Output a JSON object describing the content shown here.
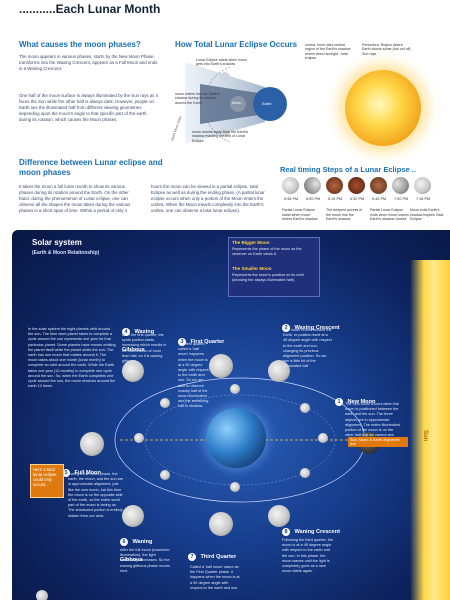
{
  "header": {
    "title": "...........Each Lunar Month"
  },
  "causes": {
    "heading": "What causes the moon phases?",
    "p1": "The moon appears in various phases, starts by the New Moon Phase, transforms into the Waxing Crescent, appears as a Full Moon and ends in a Waning Crescent.",
    "p2": "One half of the moon surface is always illuminated by the Sun rays as it faces the Sun while the other half is always dark. However, people on Earth see the illuminated half from different viewing geometries depending upon the moon's angle to that specific part of the earth during its rotation, which causes the Moon phases."
  },
  "eclipse": {
    "heading": "How Total Lunar Eclipse Occurs",
    "label_start": "Lunar Eclipse starts when moon gets into Earth's shadow",
    "label_enter": "moon enters into the Earth's shadow during its rotation around the Earth",
    "label_exit": "moon moves away from the Earth's shadow marking the end of Lunar Eclipse",
    "label_moon": "Moon",
    "label_earth": "Earth",
    "label_orbit": "Earth Moon Orbit",
    "label_umbra": "umbra. Inner dark central region of the Earth's shadow where direct sunlight - total eclipse",
    "label_penumbra": "Penumbra. Region where Earth blocks some (but not all) Sun rays."
  },
  "difference": {
    "heading": "Difference between Lunar eclipse and moon phases",
    "col1": "It takes the moon a full lunar month to show its various phases during its rotation around the Earth. On the other hand, during the phenomenon of Lunar eclipse, one can observe all the shapes the moon takes during the various phases in a short span of time. Within a period of only 4",
    "col2": "hours the moon can be viewed in a partial eclipse, total Eclipse as well as during the ending phase. (A partial lunar eclipse occurs when only a portion of the Moon enters the umbra. When the Moon travels completely into the Earth's umbra, one can observe a total lunar eclipse)."
  },
  "timing": {
    "heading": "Real timing Steps of a Lunar Eclipse ..",
    "times": [
      "5:48 PM",
      "6:00 PM",
      "6:15 PM",
      "6:30 PM",
      "6:45 PM",
      "7:00 PM",
      "7:18 PM"
    ],
    "caption1": "Partial Lunar Eclipse starts when moon enters Earth's shadow",
    "caption2": "The deepest access of the moon into the Earth's shadow",
    "caption3": "Partial Lunar Eclipse ends when moon leaves Earth's shadow Umbra",
    "caption3b": "Total Lunar Eclipse",
    "caption4": "Moon exits Earth's shadow Implies Total Eclipse"
  },
  "solar": {
    "title": "Solar system",
    "subtitle": "(Earth & Moon Relationship)",
    "intro": "In the solar system the eight planets orbit around the sun. The time each planet takes to complete a cycle around the sun represents one year for that particular planet. Some planets have moons orbiting the planet itself while the planet orbits the sun. The earth has one moon that rotates around it. The moon takes about one month (lunar month) to complete an orbit around the earth. While the Earth takes one year (12 months) to complete one cycle around the sun. So, when the Earth completes one cycle around the sun, the moon revolves around the earth 12 times.",
    "bigger_title": "The Bigger Moon",
    "bigger_text": "Represents the phase of the moon as the observer on Earth views it.",
    "smaller_title": "The Smaller Moon",
    "smaller_text": "Represents the moon's position on its orbit (showing the always illuminated half).",
    "note": "Here a total lunar eclipse could only occurs.",
    "sun_label": "Sun",
    "sun_earth_label": "Sun, Moon & Earth alignment line"
  },
  "phases": [
    {
      "num": "1",
      "name": "New Moon",
      "text": "The new moon occurs when the moon is positioned between the earth and the sun. The three objects are in approximate alignment. The entire illuminated portion of the moon is on the other half that we cannot see."
    },
    {
      "num": "2",
      "name": "Waxing Crescent",
      "text": "The moon moves around the Earth, to position itself at a 45 degree angle with respect to the earth and sun, changing its previous alignment position. So we see a little bit of the illuminated half."
    },
    {
      "num": "3",
      "name": "First Quarter",
      "text": "The first quarter, called a 'half moon' happens when the moon is at a 90 degree angle with respect to the earth and sun. So we are able to observe exactly half of the moon illuminated and the remaining half in shadow."
    },
    {
      "num": "4",
      "name": "Waxing Gibbous",
      "text": "After the first quarter, the synth portion starts increasing which results in the illumination of more than half, so it is waxing gibbous."
    },
    {
      "num": "5",
      "name": "Full Moon",
      "text": "During a full moon phase, the earth, the moon, and the sun are in approximate alignment, just like the new moon, but this time the moon is on the opposite side of the earth, so the entire sunlit part of the moon is facing us. The shadowed portion is entirely hidden from our view."
    },
    {
      "num": "6",
      "name": "Waning Gibbous",
      "text": "After the full moon (maximum illumination), the light continually decreases. So the waning gibbous phase occurs next."
    },
    {
      "num": "7",
      "name": "Third Quarter",
      "text": "Called a 'half moon' same as the First Quarter phase. It happens when the moon is at a 90 degree angle with respect to the earth and sun."
    },
    {
      "num": "8",
      "name": "Waning Crescent",
      "text": "Following the third quarter, the moon is at a 45 degree angle with respect to the earth and the sun. In this phase, the moon wanes until the light is completely gone as a new moon starts again."
    }
  ],
  "colors": {
    "accent_blue": "#1a6fb5",
    "panel_blue": "#173e8d",
    "sun_orange": "#f3a81c",
    "note_orange": "#e07a10"
  }
}
